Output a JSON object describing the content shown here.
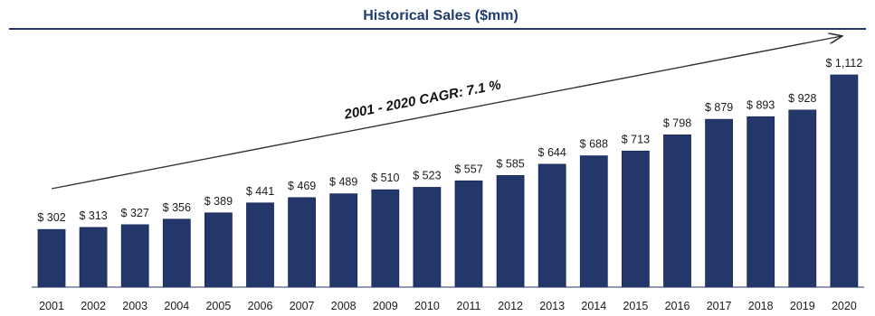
{
  "chart_data": {
    "type": "bar",
    "title": "Historical Sales ($mm)",
    "categories": [
      "2001",
      "2002",
      "2003",
      "2004",
      "2005",
      "2006",
      "2007",
      "2008",
      "2009",
      "2010",
      "2011",
      "2012",
      "2013",
      "2014",
      "2015",
      "2016",
      "2017",
      "2018",
      "2019",
      "2020"
    ],
    "values": [
      302,
      313,
      327,
      356,
      389,
      441,
      469,
      489,
      510,
      523,
      557,
      585,
      644,
      688,
      713,
      798,
      879,
      893,
      928,
      1112
    ],
    "value_labels": [
      "$ 302",
      "$ 313",
      "$ 327",
      "$ 356",
      "$ 389",
      "$ 441",
      "$ 469",
      "$ 489",
      "$ 510",
      "$ 523",
      "$ 557",
      "$ 585",
      "$ 644",
      "$ 688",
      "$ 713",
      "$ 798",
      "$ 879",
      "$ 893",
      "$ 928",
      "$ 1,112"
    ],
    "annotation": "2001 - 2020 CAGR: 7.1 %",
    "xlabel": "",
    "ylabel": "",
    "ylim": [
      0,
      1112
    ],
    "grid": false,
    "legend": "none",
    "colors": {
      "bar": "#24376b",
      "bar_edge": "#1a2a55",
      "title": "#1f3b6e",
      "rule": "#1f3b6e",
      "arrow": "#333333"
    }
  }
}
